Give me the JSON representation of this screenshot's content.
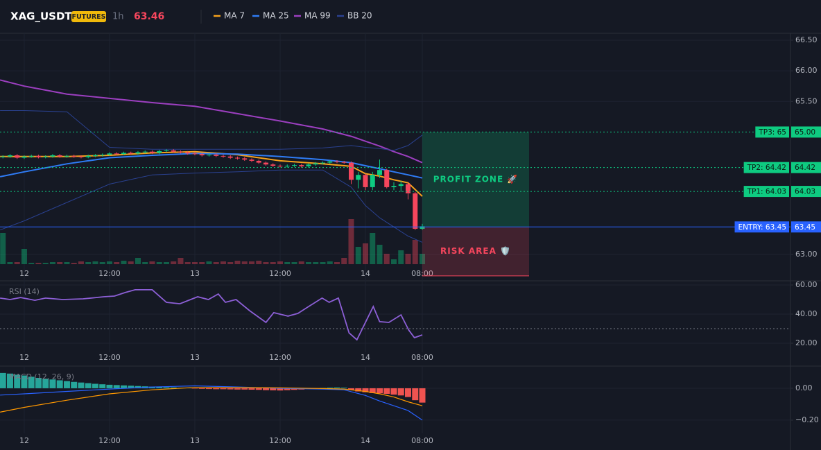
{
  "chart_data": [
    {
      "type": "candlestick",
      "title": "XAG_USDT",
      "badge": "FUTURES",
      "interval": "1h",
      "last_price": 63.46,
      "up_color": "#0ecb81",
      "down_color": "#f6465d",
      "grid": true,
      "xlim": [
        -3.41,
        107.8
      ],
      "ylim": [
        62.57,
        66.613
      ],
      "xticks": [
        {
          "value": 0,
          "label": "12"
        },
        {
          "value": 12,
          "label": "12:00"
        },
        {
          "value": 24,
          "label": "13"
        },
        {
          "value": 36,
          "label": "12:00"
        },
        {
          "value": 48,
          "label": "14"
        },
        {
          "value": 56,
          "label": "08:00"
        }
      ],
      "yticks": [
        {
          "value": 63,
          "label": "63.00"
        },
        {
          "value": 65.5,
          "label": "65.50"
        },
        {
          "value": 66,
          "label": "66.00"
        },
        {
          "value": 66.5,
          "label": "66.50"
        }
      ],
      "x": [
        -3,
        -2,
        -1,
        0,
        1,
        2,
        3,
        4,
        5,
        6,
        7,
        8,
        9,
        10,
        11,
        12,
        13,
        14,
        15,
        16,
        17,
        18,
        19,
        20,
        21,
        22,
        23,
        24,
        25,
        26,
        27,
        28,
        29,
        30,
        31,
        32,
        33,
        34,
        35,
        36,
        37,
        38,
        39,
        40,
        41,
        42,
        43,
        44,
        45,
        46,
        47,
        48,
        49,
        50,
        51,
        52,
        53,
        54,
        55,
        56
      ],
      "open": [
        64.59,
        64.6,
        64.62,
        64.58,
        64.6,
        64.61,
        64.59,
        64.6,
        64.62,
        64.6,
        64.61,
        64.6,
        64.59,
        64.61,
        64.62,
        64.63,
        64.65,
        64.64,
        64.66,
        64.65,
        64.67,
        64.68,
        64.66,
        64.69,
        64.7,
        64.68,
        64.67,
        64.65,
        64.64,
        64.62,
        64.63,
        64.61,
        64.6,
        64.58,
        64.57,
        64.55,
        64.53,
        64.5,
        64.47,
        64.45,
        64.44,
        64.45,
        64.46,
        64.44,
        64.47,
        64.49,
        64.5,
        64.52,
        64.51,
        64.5,
        64.22,
        64.3,
        64.1,
        64.3,
        64.38,
        64.1,
        64.12,
        64.15,
        64.0,
        63.42
      ],
      "high": [
        64.62,
        64.64,
        64.64,
        64.62,
        64.63,
        64.63,
        64.62,
        64.64,
        64.64,
        64.63,
        64.63,
        64.62,
        64.63,
        64.64,
        64.65,
        64.67,
        64.67,
        64.68,
        64.68,
        64.69,
        64.7,
        64.7,
        64.71,
        64.72,
        64.72,
        64.7,
        64.69,
        64.67,
        64.66,
        64.65,
        64.65,
        64.63,
        64.62,
        64.6,
        64.59,
        64.57,
        64.55,
        64.52,
        64.49,
        64.47,
        64.47,
        64.48,
        64.48,
        64.49,
        64.51,
        64.52,
        64.54,
        64.54,
        64.53,
        64.52,
        64.35,
        64.32,
        64.35,
        64.55,
        64.4,
        64.18,
        64.2,
        64.18,
        64.02,
        63.5
      ],
      "low": [
        64.57,
        64.58,
        64.56,
        64.56,
        64.58,
        64.57,
        64.57,
        64.58,
        64.58,
        64.58,
        64.58,
        64.57,
        64.57,
        64.59,
        64.6,
        64.61,
        64.62,
        64.62,
        64.63,
        64.63,
        64.65,
        64.64,
        64.64,
        64.67,
        64.66,
        64.65,
        64.63,
        64.62,
        64.6,
        64.6,
        64.59,
        64.58,
        64.56,
        64.55,
        64.53,
        64.51,
        64.48,
        64.45,
        64.43,
        64.42,
        64.42,
        64.43,
        64.42,
        64.42,
        64.45,
        64.47,
        64.48,
        64.49,
        64.48,
        64.15,
        64.08,
        64.05,
        64.05,
        64.25,
        64.08,
        64.05,
        64.02,
        63.9,
        63.4,
        63.4
      ],
      "close": [
        64.6,
        64.62,
        64.58,
        64.6,
        64.61,
        64.59,
        64.6,
        64.62,
        64.6,
        64.61,
        64.6,
        64.59,
        64.61,
        64.62,
        64.63,
        64.65,
        64.64,
        64.66,
        64.65,
        64.67,
        64.68,
        64.66,
        64.69,
        64.7,
        64.68,
        64.67,
        64.65,
        64.64,
        64.62,
        64.63,
        64.61,
        64.6,
        64.58,
        64.57,
        64.55,
        64.53,
        64.5,
        64.47,
        64.45,
        64.44,
        64.45,
        64.46,
        64.44,
        64.47,
        64.49,
        64.5,
        64.52,
        64.51,
        64.5,
        64.22,
        64.3,
        64.1,
        64.3,
        64.38,
        64.1,
        64.12,
        64.15,
        64.0,
        63.42,
        63.46
      ],
      "volume": [
        45,
        3,
        3,
        22,
        2,
        2,
        2,
        3,
        3,
        3,
        2,
        4,
        3,
        4,
        3,
        4,
        3,
        5,
        4,
        9,
        3,
        4,
        3,
        3,
        4,
        9,
        3,
        3,
        3,
        4,
        3,
        4,
        3,
        5,
        4,
        4,
        5,
        3,
        3,
        4,
        3,
        3,
        4,
        3,
        3,
        3,
        4,
        3,
        9,
        65,
        25,
        30,
        45,
        28,
        15,
        7,
        20,
        15,
        35,
        15
      ],
      "series": [
        {
          "name": "MA 7",
          "color": "#f7a21b",
          "x": [
            -3.4,
            0,
            6,
            12,
            18,
            24,
            30,
            36,
            42,
            46,
            48,
            50,
            52,
            54,
            56
          ],
          "values": [
            64.6,
            64.6,
            64.6,
            64.62,
            64.66,
            64.68,
            64.63,
            64.53,
            64.48,
            64.44,
            64.32,
            64.28,
            64.22,
            64.17,
            63.95
          ]
        },
        {
          "name": "MA 25",
          "color": "#2f7cf6",
          "x": [
            -3.4,
            0,
            6,
            12,
            18,
            24,
            30,
            36,
            42,
            46,
            48,
            50,
            52,
            54,
            56
          ],
          "values": [
            64.27,
            64.35,
            64.48,
            64.58,
            64.62,
            64.65,
            64.64,
            64.6,
            64.55,
            64.5,
            64.45,
            64.4,
            64.35,
            64.3,
            64.25
          ]
        },
        {
          "name": "MA 99",
          "color": "#9c3fc0",
          "x": [
            -3.4,
            0,
            6,
            12,
            18,
            24,
            30,
            36,
            42,
            46,
            48,
            50,
            52,
            54,
            56
          ],
          "values": [
            65.85,
            65.75,
            65.62,
            65.55,
            65.48,
            65.42,
            65.3,
            65.18,
            65.05,
            64.93,
            64.85,
            64.77,
            64.68,
            64.6,
            64.5
          ]
        },
        {
          "name": "BB 20",
          "color": "#2a4190",
          "x": [
            -3.4,
            0,
            6,
            12,
            18,
            24,
            30,
            36,
            42,
            46,
            48,
            50,
            52,
            54,
            56
          ],
          "upper": [
            65.35,
            65.35,
            65.33,
            64.75,
            64.72,
            64.72,
            64.72,
            64.72,
            64.74,
            64.78,
            64.75,
            64.73,
            64.7,
            64.78,
            64.95
          ],
          "lower": [
            63.4,
            63.55,
            63.85,
            64.15,
            64.3,
            64.33,
            64.35,
            64.38,
            64.38,
            64.1,
            63.8,
            63.6,
            63.45,
            63.3,
            63.2
          ]
        }
      ],
      "levels": [
        {
          "label": "TP3: 65",
          "value": 65,
          "value_label": "65.00",
          "color": "#0ecb81"
        },
        {
          "label": "TP2: 64.42",
          "value": 64.42,
          "value_label": "64.42",
          "color": "#0ecb81"
        },
        {
          "label": "TP1: 64.03",
          "value": 64.03,
          "value_label": "64.03",
          "color": "#0ecb81"
        },
        {
          "label": "ENTRY: 63.45",
          "value": 63.45,
          "value_label": "63.45",
          "color": "#2962ff"
        }
      ],
      "zones": [
        {
          "label": "PROFIT ZONE 🚀",
          "from": 63.45,
          "to": 65,
          "color": "#0ecb81"
        },
        {
          "label": "RISK AREA 🛡️",
          "from": 62.65,
          "to": 63.45,
          "color": "#f6465d"
        }
      ]
    },
    {
      "type": "line",
      "title": "RSI (14)",
      "grid": true,
      "xlim": [
        -3.41,
        107.8
      ],
      "ylim": [
        13.81,
        62.86
      ],
      "xticks": [
        {
          "value": 0,
          "label": "12"
        },
        {
          "value": 12,
          "label": "12:00"
        },
        {
          "value": 24,
          "label": "13"
        },
        {
          "value": 36,
          "label": "12:00"
        },
        {
          "value": 48,
          "label": "14"
        },
        {
          "value": 56,
          "label": "08:00"
        }
      ],
      "yticks": [
        {
          "value": 20,
          "label": "20.00"
        },
        {
          "value": 40,
          "label": "40.00"
        },
        {
          "value": 60,
          "label": "60.00"
        }
      ],
      "hlines": [
        30
      ],
      "series": [
        {
          "color": "#8c5fd6",
          "x": [
            -3.4,
            -2,
            -0.5,
            1.5,
            3,
            5.4,
            8.3,
            11.2,
            12.7,
            14.2,
            15.6,
            18,
            20,
            21.9,
            24.4,
            25.9,
            27.3,
            28.3,
            29.8,
            31.7,
            34,
            35.1,
            37.1,
            38.5,
            40,
            41.9,
            42.9,
            44.2,
            45.7,
            46.8,
            49.1,
            50,
            51.3,
            53,
            54.1,
            54.9,
            56
          ],
          "values": [
            51.0,
            50.0,
            51.4,
            49.5,
            51.0,
            50.0,
            50.5,
            51.9,
            52.4,
            54.8,
            56.7,
            56.7,
            48.1,
            47.1,
            51.9,
            50.0,
            53.8,
            48.1,
            50.0,
            42.4,
            34.3,
            41.0,
            38.6,
            40.5,
            45.2,
            51.0,
            48.1,
            51.0,
            27.1,
            22.4,
            45.2,
            34.8,
            34.3,
            39.5,
            29.0,
            23.8,
            25.7
          ]
        }
      ]
    },
    {
      "type": "macd",
      "title": "MACD (12, 26, 9)",
      "grid": true,
      "up_color": "#26a69a",
      "down_color": "#ef5350",
      "xlim": [
        -3.41,
        107.8
      ],
      "ylim": [
        -0.283,
        0.139
      ],
      "xticks": [
        {
          "value": 0,
          "label": "12"
        },
        {
          "value": 12,
          "label": "12:00"
        },
        {
          "value": 24,
          "label": "13"
        },
        {
          "value": 36,
          "label": "12:00"
        },
        {
          "value": 48,
          "label": "14"
        },
        {
          "value": 56,
          "label": "08:00"
        }
      ],
      "yticks": [
        {
          "value": -0.2,
          "label": "−0.20"
        },
        {
          "value": 0,
          "label": "0.00"
        }
      ],
      "x": [
        -3,
        -2,
        -1,
        0,
        1,
        2,
        3,
        4,
        5,
        6,
        7,
        8,
        9,
        10,
        11,
        12,
        13,
        14,
        15,
        16,
        17,
        18,
        19,
        20,
        21,
        22,
        23,
        24,
        25,
        26,
        27,
        28,
        29,
        30,
        31,
        32,
        33,
        34,
        35,
        36,
        37,
        38,
        39,
        40,
        41,
        42,
        43,
        44,
        45,
        46,
        47,
        48,
        49,
        50,
        51,
        52,
        53,
        54,
        55,
        56
      ],
      "histogram": [
        0.096,
        0.092,
        0.085,
        0.08,
        0.072,
        0.065,
        0.06,
        0.055,
        0.05,
        0.045,
        0.04,
        0.036,
        0.032,
        0.028,
        0.025,
        0.022,
        0.02,
        0.018,
        0.016,
        0.014,
        0.012,
        0.01,
        0.008,
        0.006,
        0.005,
        0.003,
        0.002,
        -0.002,
        -0.004,
        -0.005,
        -0.006,
        -0.006,
        -0.007,
        -0.008,
        -0.008,
        -0.009,
        -0.01,
        -0.012,
        -0.013,
        -0.014,
        -0.012,
        -0.01,
        -0.008,
        -0.005,
        -0.003,
        0.002,
        0.004,
        0.005,
        0.004,
        -0.01,
        -0.02,
        -0.025,
        -0.03,
        -0.032,
        -0.035,
        -0.04,
        -0.045,
        -0.055,
        -0.075,
        -0.09
      ],
      "series": [
        {
          "color": "#2962ff",
          "x": [
            -3.4,
            0,
            6,
            12,
            18,
            24,
            30,
            36,
            42,
            45,
            48,
            50,
            52,
            54,
            56
          ],
          "values": [
            -0.043,
            -0.035,
            -0.02,
            -0.005,
            0.008,
            0.015,
            0.008,
            0.0,
            -0.005,
            -0.01,
            -0.045,
            -0.08,
            -0.11,
            -0.14,
            -0.2
          ]
        },
        {
          "color": "#ff9800",
          "x": [
            -3.4,
            0,
            6,
            12,
            18,
            24,
            30,
            36,
            42,
            45,
            48,
            50,
            52,
            54,
            56
          ],
          "values": [
            -0.15,
            -0.12,
            -0.075,
            -0.035,
            -0.01,
            0.005,
            0.005,
            0.003,
            -0.002,
            -0.005,
            -0.02,
            -0.035,
            -0.055,
            -0.085,
            -0.11
          ]
        }
      ]
    }
  ]
}
